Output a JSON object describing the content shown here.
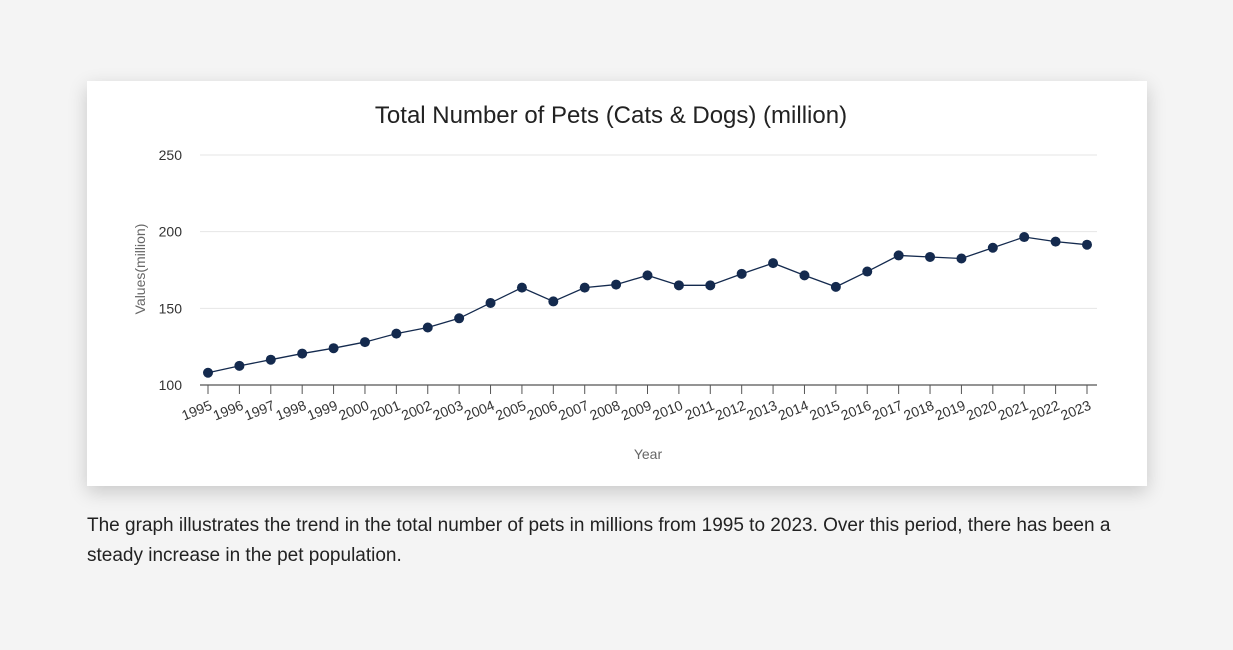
{
  "chart_data": {
    "type": "line",
    "title": "Total Number of Pets (Cats & Dogs) (million)",
    "xlabel": "Year",
    "ylabel": "Values(million)",
    "ylim": [
      100,
      250
    ],
    "yticks": [
      100,
      150,
      200,
      250
    ],
    "grid": true,
    "x": [
      "1995",
      "1996",
      "1997",
      "1998",
      "1999",
      "2000",
      "2001",
      "2002",
      "2003",
      "2004",
      "2005",
      "2006",
      "2007",
      "2008",
      "2009",
      "2010",
      "2011",
      "2012",
      "2013",
      "2014",
      "2015",
      "2016",
      "2017",
      "2018",
      "2019",
      "2020",
      "2021",
      "2022",
      "2023"
    ],
    "series": [
      {
        "values": [
          108,
          112.5,
          116.5,
          120.5,
          124,
          128,
          133.5,
          137.5,
          143.5,
          153.5,
          163.5,
          154.5,
          163.5,
          165.5,
          171.5,
          165,
          165,
          172.5,
          179.5,
          171.5,
          164,
          174,
          184.5,
          183.5,
          182.5,
          189.5,
          196.5,
          193.5,
          191.5
        ],
        "color": "#142a4e"
      }
    ]
  },
  "caption": "The graph illustrates the trend in the total number of pets in millions from 1995 to 2023. Over this period, there has been a steady increase in the pet population."
}
